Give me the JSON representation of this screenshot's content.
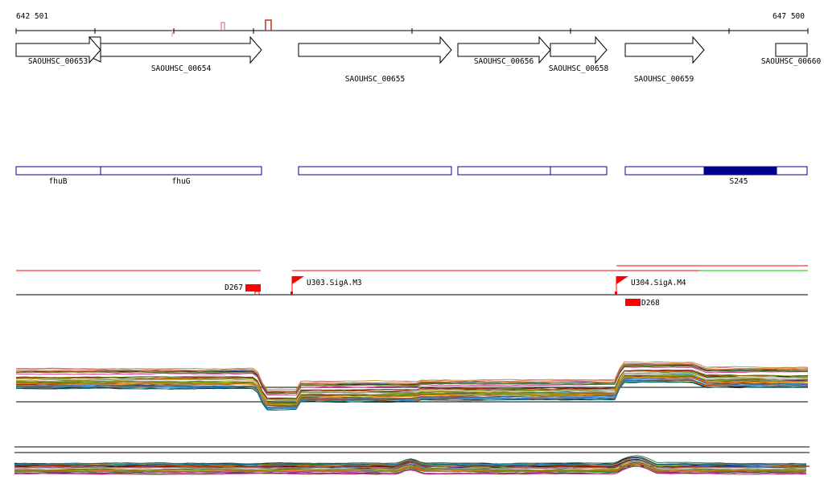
{
  "coordinates": {
    "start": "642 501",
    "end": "647 500"
  },
  "genes": [
    {
      "id": "SAOUHSC_00653"
    },
    {
      "id": "SAOUHSC_00654"
    },
    {
      "id": "SAOUHSC_00655"
    },
    {
      "id": "SAOUHSC_00656"
    },
    {
      "id": "SAOUHSC_00658"
    },
    {
      "id": "SAOUHSC_00659"
    },
    {
      "id": "SAOUHSC_00660"
    }
  ],
  "annotations": [
    {
      "label": "fhuB"
    },
    {
      "label": "fhuG"
    },
    {
      "label": ""
    },
    {
      "label": ""
    },
    {
      "label": ""
    },
    {
      "label": ""
    },
    {
      "label": ""
    },
    {
      "label": "S245"
    }
  ],
  "features": {
    "promoters": [
      {
        "label": "U303.SigA.M3"
      },
      {
        "label": "U304.SigA.M4"
      }
    ],
    "terminators": [
      {
        "label": "D267"
      },
      {
        "label": "D268"
      }
    ]
  },
  "colors": {
    "annotation_border": "#00008b",
    "highlight_fill": "#00008b",
    "feature_red": "#ff0000",
    "feature_green": "#00cc00"
  }
}
